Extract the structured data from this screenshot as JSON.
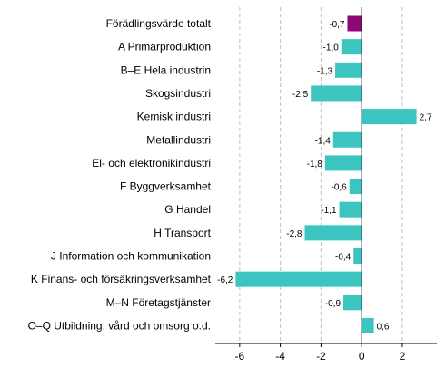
{
  "chart_data": {
    "type": "bar",
    "orientation": "horizontal",
    "categories": [
      "Förädlingsvärde totalt",
      "A Primärproduktion",
      "B–E Hela industrin",
      "Skogsindustri",
      "Kemisk industri",
      "Metallindustri",
      "El- och elektronikindustri",
      "F Byggverksamhet",
      "G Handel",
      "H Transport",
      "J Information och kommunikation",
      "K Finans- och försäkringsverksamhet",
      "M–N Företagstjänster",
      "O–Q Utbildning, vård och omsorg o.d."
    ],
    "values": [
      -0.7,
      -1.0,
      -1.3,
      -2.5,
      2.7,
      -1.4,
      -1.8,
      -0.6,
      -1.1,
      -2.8,
      -0.4,
      -6.2,
      -0.9,
      0.6
    ],
    "value_labels": [
      "-0,7",
      "-1,0",
      "-1,3",
      "-2,5",
      "2,7",
      "-1,4",
      "-1,8",
      "-0,6",
      "-1,1",
      "-2,8",
      "-0,4",
      "-6,2",
      "-0,9",
      "0,6"
    ],
    "xlim": [
      -7.2,
      3.7
    ],
    "xticks": [
      -6,
      -4,
      -2,
      0,
      2
    ],
    "xtick_labels": [
      "-6",
      "-4",
      "-2",
      "0",
      "2"
    ],
    "grid": true,
    "colors": {
      "default": "#3bc4c0",
      "highlight": "#8b0a76"
    },
    "highlight_index": 0
  }
}
